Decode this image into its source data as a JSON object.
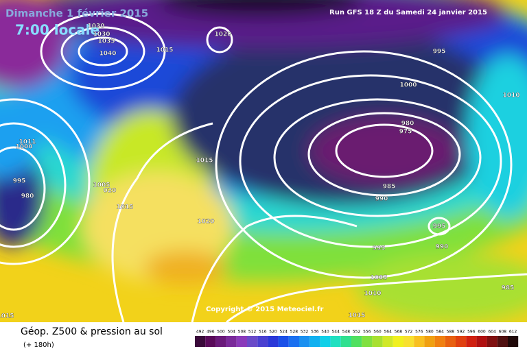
{
  "header": {
    "date": "Dimanche 1 février 2015",
    "time": "7:00 locale",
    "run": "Run GFS 18 Z du Samedi 24 janvier 2015"
  },
  "copyright": "Copyright © 2015 Meteociel.fr",
  "footer": {
    "title": "Géop. Z500 & pression au sol",
    "lead": "(+ 180h)"
  },
  "isobar_labels": [
    "1030",
    "1030",
    "1035",
    "1040",
    "1020",
    "1015",
    "995",
    "1000",
    "1010",
    "980",
    "975",
    "985",
    "990",
    "995",
    "990",
    "995",
    "1005",
    "1010",
    "1015",
    "1015",
    "1020",
    "1015",
    "1005",
    "1011",
    "1000",
    "995",
    "980",
    "985",
    "1015",
    "020"
  ],
  "colorbar": [
    "492",
    "496",
    "500",
    "504",
    "508",
    "512",
    "516",
    "520",
    "524",
    "528",
    "532",
    "536",
    "540",
    "544",
    "548",
    "552",
    "556",
    "560",
    "564",
    "568",
    "572",
    "576",
    "580",
    "584",
    "588",
    "592",
    "596",
    "600",
    "604",
    "608",
    "612"
  ]
}
